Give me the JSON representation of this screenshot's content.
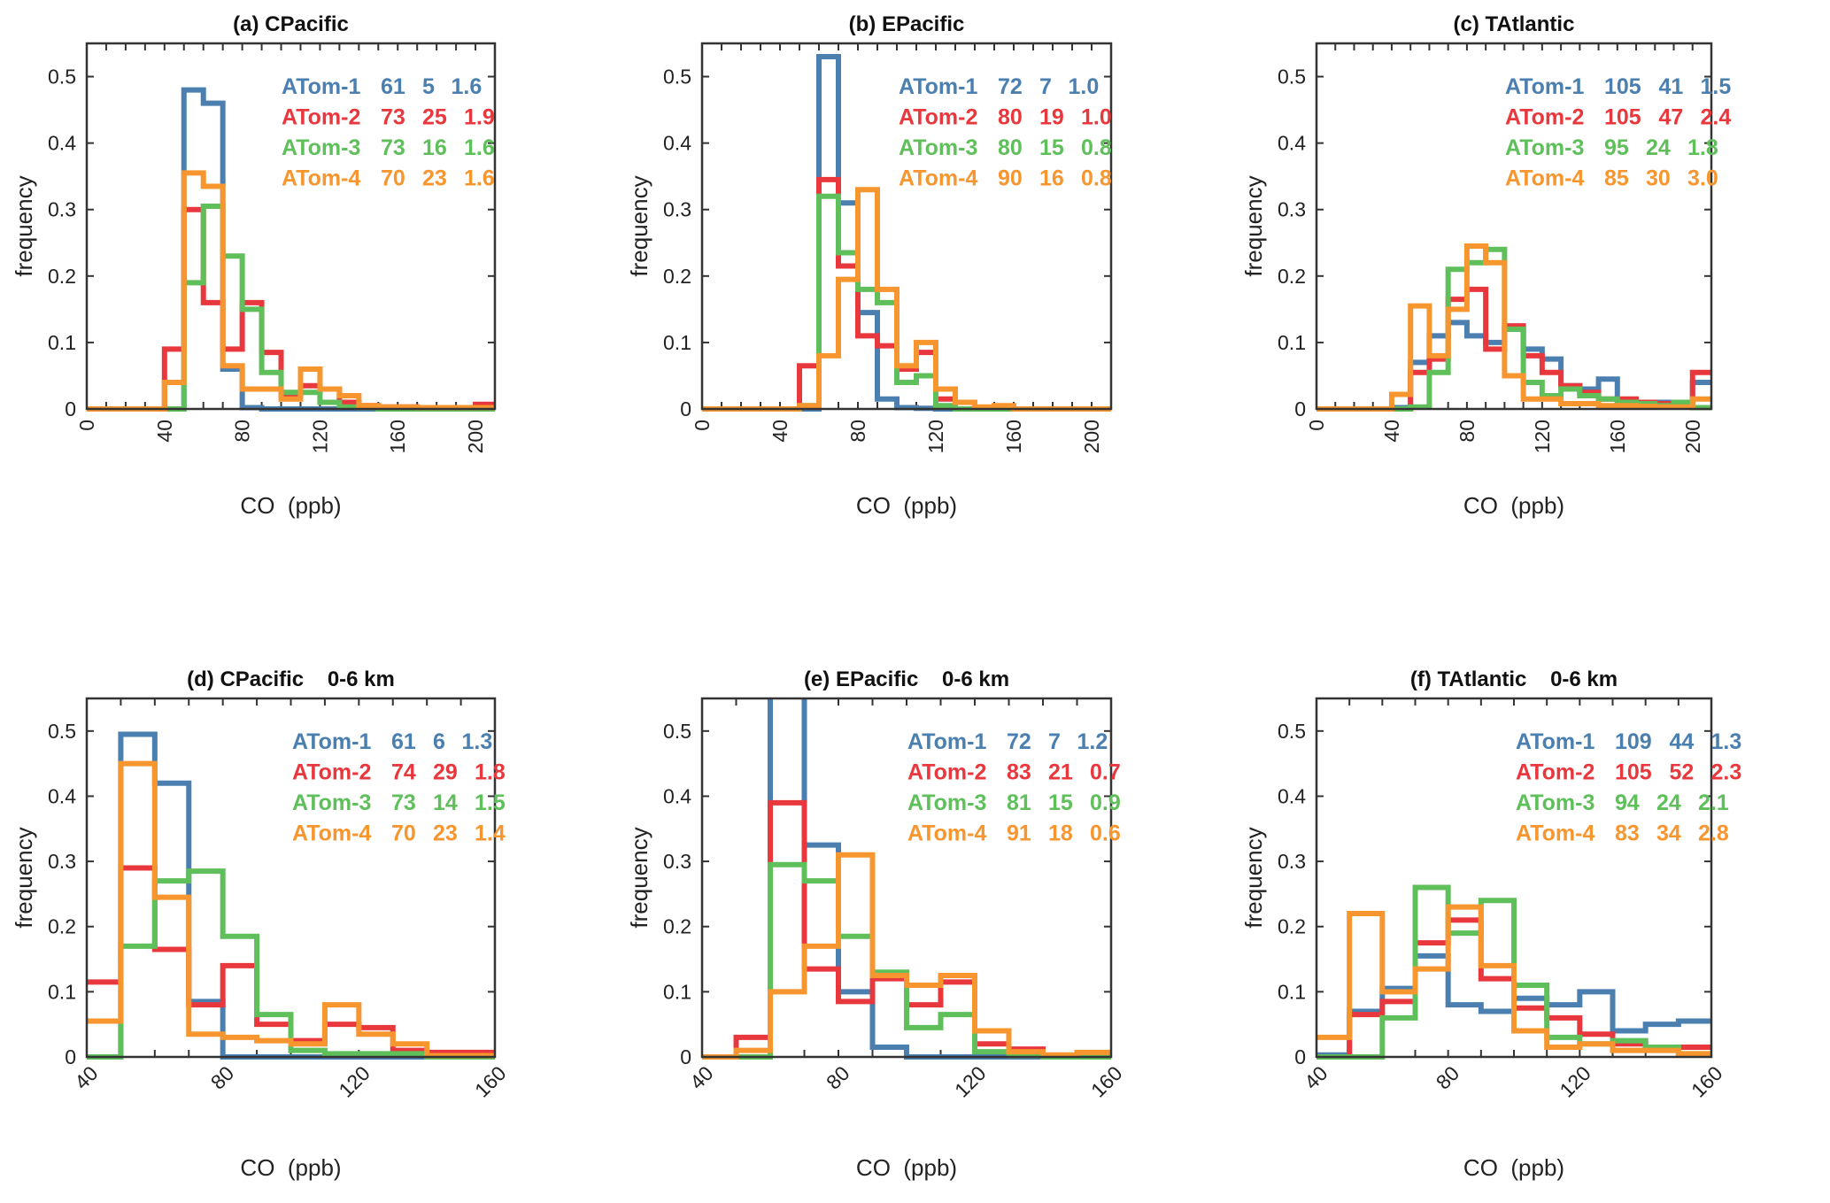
{
  "colors": {
    "ATom-1": "#4a7fb0",
    "ATom-2": "#e8383e",
    "ATom-3": "#5fbf5a",
    "ATom-4": "#f7962f",
    "axis": "#333333"
  },
  "chart_data": [
    {
      "type": "step-histogram",
      "title": "(a) CPacific",
      "xlabel": "CO  (ppb)",
      "ylabel": "frequency",
      "xlim": [
        0,
        210
      ],
      "ylim": [
        0,
        0.55
      ],
      "xticks": [
        0,
        40,
        80,
        120,
        160,
        200
      ],
      "yticks": [
        0,
        0.1,
        0.2,
        0.3,
        0.4,
        0.5
      ],
      "x_start": 0,
      "bin_width": 10,
      "grid": false,
      "series": [
        {
          "name": "ATom-1",
          "stats": [
            "61",
            "5",
            "1.6"
          ],
          "values": [
            0,
            0,
            0,
            0,
            0,
            0.48,
            0.46,
            0.06,
            0.002,
            0,
            0,
            0,
            0,
            0,
            0,
            0,
            0,
            0,
            0,
            0,
            0
          ]
        },
        {
          "name": "ATom-2",
          "stats": [
            "73",
            "25",
            "1.9"
          ],
          "values": [
            0,
            0,
            0,
            0,
            0.09,
            0.3,
            0.16,
            0.09,
            0.16,
            0.085,
            0.02,
            0.035,
            0.03,
            0.01,
            0.005,
            0.003,
            0.003,
            0.002,
            0.002,
            0.002,
            0.007
          ]
        },
        {
          "name": "ATom-3",
          "stats": [
            "73",
            "16",
            "1.6"
          ],
          "values": [
            0,
            0,
            0,
            0,
            0,
            0.19,
            0.305,
            0.23,
            0.15,
            0.055,
            0.025,
            0.025,
            0.01,
            0.003,
            0.002,
            0,
            0,
            0,
            0,
            0,
            0
          ]
        },
        {
          "name": "ATom-4",
          "stats": [
            "70",
            "23",
            "1.6"
          ],
          "values": [
            0,
            0,
            0,
            0,
            0.04,
            0.355,
            0.335,
            0.065,
            0.03,
            0.03,
            0.015,
            0.06,
            0.03,
            0.02,
            0.005,
            0.003,
            0.003,
            0.002,
            0.002,
            0.002,
            0.002
          ]
        }
      ]
    },
    {
      "type": "step-histogram",
      "title": "(b) EPacific",
      "xlabel": "CO  (ppb)",
      "ylabel": "frequency",
      "xlim": [
        0,
        210
      ],
      "ylim": [
        0,
        0.55
      ],
      "xticks": [
        0,
        40,
        80,
        120,
        160,
        200
      ],
      "yticks": [
        0,
        0.1,
        0.2,
        0.3,
        0.4,
        0.5
      ],
      "x_start": 0,
      "bin_width": 10,
      "grid": false,
      "series": [
        {
          "name": "ATom-1",
          "stats": [
            "72",
            "7",
            "1.0"
          ],
          "values": [
            0,
            0,
            0,
            0,
            0,
            0,
            0.53,
            0.31,
            0.145,
            0.015,
            0.002,
            0.001,
            0,
            0,
            0,
            0,
            0,
            0,
            0,
            0,
            0
          ]
        },
        {
          "name": "ATom-2",
          "stats": [
            "80",
            "19",
            "1.0"
          ],
          "values": [
            0,
            0,
            0,
            0,
            0,
            0.065,
            0.345,
            0.215,
            0.11,
            0.095,
            0.06,
            0.085,
            0.015,
            0.01,
            0.002,
            0.001,
            0,
            0,
            0,
            0,
            0
          ]
        },
        {
          "name": "ATom-3",
          "stats": [
            "80",
            "15",
            "0.8"
          ],
          "values": [
            0,
            0,
            0,
            0,
            0,
            0.005,
            0.32,
            0.235,
            0.18,
            0.16,
            0.04,
            0.05,
            0.005,
            0,
            0,
            0,
            0,
            0,
            0,
            0,
            0
          ]
        },
        {
          "name": "ATom-4",
          "stats": [
            "90",
            "16",
            "0.8"
          ],
          "values": [
            0,
            0,
            0,
            0,
            0,
            0.005,
            0.08,
            0.195,
            0.33,
            0.18,
            0.065,
            0.1,
            0.03,
            0.01,
            0.003,
            0.005,
            0,
            0,
            0,
            0,
            0
          ]
        }
      ]
    },
    {
      "type": "step-histogram",
      "title": "(c) TAtlantic",
      "xlabel": "CO  (ppb)",
      "ylabel": "frequency",
      "xlim": [
        0,
        210
      ],
      "ylim": [
        0,
        0.55
      ],
      "xticks": [
        0,
        40,
        80,
        120,
        160,
        200
      ],
      "yticks": [
        0,
        0.1,
        0.2,
        0.3,
        0.4,
        0.5
      ],
      "x_start": 0,
      "bin_width": 10,
      "grid": false,
      "series": [
        {
          "name": "ATom-1",
          "stats": [
            "105",
            "41",
            "1.5"
          ],
          "values": [
            0,
            0,
            0,
            0,
            0.002,
            0.07,
            0.11,
            0.13,
            0.11,
            0.1,
            0.12,
            0.09,
            0.075,
            0.035,
            0.03,
            0.045,
            0.01,
            0.008,
            0.01,
            0.005,
            0.04
          ]
        },
        {
          "name": "ATom-2",
          "stats": [
            "105",
            "47",
            "2.4"
          ],
          "values": [
            0,
            0,
            0,
            0,
            0,
            0.055,
            0.075,
            0.165,
            0.18,
            0.09,
            0.125,
            0.08,
            0.055,
            0.035,
            0.025,
            0.015,
            0.015,
            0.01,
            0.008,
            0.005,
            0.055
          ]
        },
        {
          "name": "ATom-3",
          "stats": [
            "95",
            "24",
            "1.8"
          ],
          "values": [
            0,
            0,
            0,
            0,
            0,
            0.003,
            0.055,
            0.21,
            0.22,
            0.24,
            0.12,
            0.04,
            0.02,
            0.03,
            0.02,
            0.015,
            0.01,
            0.008,
            0.005,
            0.01,
            0.002
          ]
        },
        {
          "name": "ATom-4",
          "stats": [
            "85",
            "30",
            "3.0"
          ],
          "values": [
            0,
            0,
            0,
            0,
            0.022,
            0.155,
            0.08,
            0.15,
            0.245,
            0.22,
            0.05,
            0.015,
            0.015,
            0.008,
            0.008,
            0.005,
            0.005,
            0.004,
            0.003,
            0.003,
            0.015
          ]
        }
      ]
    },
    {
      "type": "step-histogram",
      "title": "(d) CPacific    0-6 km",
      "xlabel": "CO  (ppb)",
      "ylabel": "frequency",
      "xlim": [
        40,
        160
      ],
      "ylim": [
        0,
        0.55
      ],
      "xticks": [
        40,
        80,
        120,
        160
      ],
      "yticks": [
        0,
        0.1,
        0.2,
        0.3,
        0.4,
        0.5
      ],
      "x_start": 40,
      "bin_width": 10,
      "grid": false,
      "series": [
        {
          "name": "ATom-1",
          "stats": [
            "61",
            "6",
            "1.3"
          ],
          "values": [
            0,
            0.495,
            0.42,
            0.085,
            0,
            0,
            0,
            0,
            0,
            0,
            0,
            0
          ]
        },
        {
          "name": "ATom-2",
          "stats": [
            "74",
            "29",
            "1.8"
          ],
          "values": [
            0.115,
            0.29,
            0.165,
            0.08,
            0.14,
            0.05,
            0.025,
            0.05,
            0.045,
            0.01,
            0.007,
            0.007
          ]
        },
        {
          "name": "ATom-3",
          "stats": [
            "73",
            "14",
            "1.5"
          ],
          "values": [
            0,
            0.17,
            0.27,
            0.285,
            0.185,
            0.065,
            0.01,
            0.005,
            0.005,
            0.005,
            0,
            0
          ]
        },
        {
          "name": "ATom-4",
          "stats": [
            "70",
            "23",
            "1.4"
          ],
          "values": [
            0.055,
            0.45,
            0.245,
            0.035,
            0.03,
            0.025,
            0.02,
            0.08,
            0.035,
            0.02,
            0.002,
            0.002
          ]
        }
      ]
    },
    {
      "type": "step-histogram",
      "title": "(e) EPacific    0-6 km",
      "xlabel": "CO  (ppb)",
      "ylabel": "frequency",
      "xlim": [
        40,
        160
      ],
      "ylim": [
        0,
        0.55
      ],
      "xticks": [
        40,
        80,
        120,
        160
      ],
      "yticks": [
        0,
        0.1,
        0.2,
        0.3,
        0.4,
        0.5
      ],
      "x_start": 40,
      "bin_width": 10,
      "grid": false,
      "series": [
        {
          "name": "ATom-1",
          "stats": [
            "72",
            "7",
            "1.2"
          ],
          "values": [
            0,
            0,
            0.6,
            0.325,
            0.1,
            0.015,
            0,
            0,
            0,
            0,
            0,
            0
          ]
        },
        {
          "name": "ATom-2",
          "stats": [
            "83",
            "21",
            "0.7"
          ],
          "values": [
            0,
            0.03,
            0.39,
            0.135,
            0.085,
            0.12,
            0.08,
            0.115,
            0.02,
            0.012,
            0.002,
            0
          ]
        },
        {
          "name": "ATom-3",
          "stats": [
            "81",
            "15",
            "0.9"
          ],
          "values": [
            0,
            0,
            0.295,
            0.27,
            0.185,
            0.13,
            0.045,
            0.065,
            0.008,
            0.002,
            0,
            0
          ]
        },
        {
          "name": "ATom-4",
          "stats": [
            "91",
            "18",
            "0.6"
          ],
          "values": [
            0,
            0.01,
            0.1,
            0.17,
            0.31,
            0.125,
            0.11,
            0.125,
            0.04,
            0.008,
            0.003,
            0.007
          ]
        }
      ]
    },
    {
      "type": "step-histogram",
      "title": "(f) TAtlantic    0-6 km",
      "xlabel": "CO  (ppb)",
      "ylabel": "frequency",
      "xlim": [
        40,
        160
      ],
      "ylim": [
        0,
        0.55
      ],
      "xticks": [
        40,
        80,
        120,
        160
      ],
      "yticks": [
        0,
        0.1,
        0.2,
        0.3,
        0.4,
        0.5
      ],
      "x_start": 40,
      "bin_width": 10,
      "grid": false,
      "series": [
        {
          "name": "ATom-1",
          "stats": [
            "109",
            "44",
            "1.3"
          ],
          "values": [
            0.003,
            0.07,
            0.105,
            0.155,
            0.08,
            0.07,
            0.09,
            0.08,
            0.1,
            0.04,
            0.05,
            0.055
          ]
        },
        {
          "name": "ATom-2",
          "stats": [
            "105",
            "52",
            "2.3"
          ],
          "values": [
            0,
            0.065,
            0.085,
            0.175,
            0.21,
            0.12,
            0.075,
            0.06,
            0.035,
            0.02,
            0.015,
            0.015
          ]
        },
        {
          "name": "ATom-3",
          "stats": [
            "94",
            "24",
            "2.1"
          ],
          "values": [
            0,
            0,
            0.06,
            0.26,
            0.19,
            0.24,
            0.11,
            0.03,
            0.02,
            0.025,
            0.015,
            0.005
          ]
        },
        {
          "name": "ATom-4",
          "stats": [
            "83",
            "34",
            "2.8"
          ],
          "values": [
            0.03,
            0.22,
            0.1,
            0.135,
            0.23,
            0.14,
            0.04,
            0.015,
            0.02,
            0.01,
            0.01,
            0.005
          ]
        }
      ]
    }
  ]
}
